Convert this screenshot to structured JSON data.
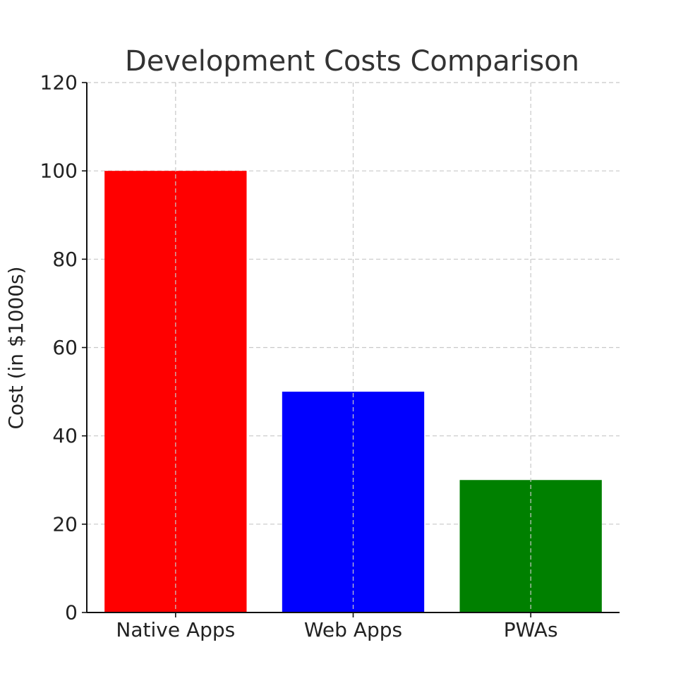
{
  "chart_data": {
    "type": "bar",
    "title": "Development Costs Comparison",
    "xlabel": "",
    "ylabel": "Cost (in $1000s)",
    "categories": [
      "Native Apps",
      "Web Apps",
      "PWAs"
    ],
    "values": [
      100,
      50,
      30
    ],
    "colors": [
      "#ff0000",
      "#0000ff",
      "#008000"
    ],
    "ylim": [
      0,
      120
    ],
    "yticks": [
      0,
      20,
      40,
      60,
      80,
      100,
      120
    ],
    "grid": true,
    "legend": "none"
  }
}
